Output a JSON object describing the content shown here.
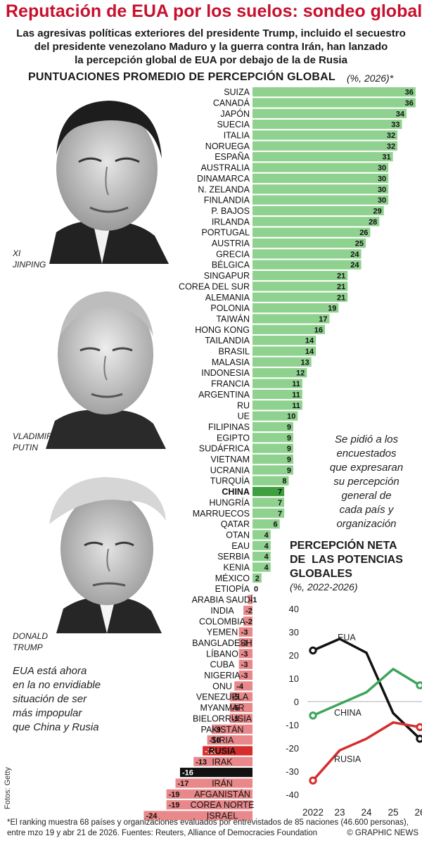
{
  "headline": "Reputación de EUA por los suelos: sondeo global",
  "deck": [
    "Las agresivas políticas exteriores del presidente Trump, incluido el secuestro",
    "del presidente venezolano Maduro y la guerra contra Irán, han lanzado",
    "la percepción global de EUA por debajo de la de Rusia"
  ],
  "chart_title": "PUNTUACIONES PROMEDIO DE PERCEPCIÓN GLOBAL",
  "chart_unit": "(%, 2026)*",
  "captions": {
    "xi": [
      "XI",
      "JINPING"
    ],
    "putin": [
      "VLADIMIR",
      "PUTIN"
    ],
    "trump": [
      "DONALD",
      "TRUMP"
    ]
  },
  "note_right": [
    "Se pidió a los",
    "encuestados",
    "que expresaran",
    "su percepción",
    "general de",
    "cada país y",
    "organización"
  ],
  "note_left": [
    "EUA está ahora",
    "en la no envidiable",
    "situación de ser",
    "más impopular",
    "que China y Rusia"
  ],
  "colors": {
    "positive": "#8fd18e",
    "china_highlight": "#3f9f3f",
    "negative": "#e8888a",
    "russia_highlight": "#d62d2d",
    "usa_highlight": "#111111",
    "headline": "#c8102e"
  },
  "chart_data": [
    {
      "type": "bar",
      "title": "PUNTUACIONES PROMEDIO DE PERCEPCIÓN GLOBAL",
      "unit": "(%, 2026)*",
      "categories": [
        "SUIZA",
        "CANADÁ",
        "JAPÓN",
        "SUECIA",
        "ITALIA",
        "NORUEGA",
        "ESPAÑA",
        "AUSTRALIA",
        "DINAMARCA",
        "N. ZELANDA",
        "FINLANDIA",
        "P. BAJOS",
        "IRLANDA",
        "PORTUGAL",
        "AUSTRIA",
        "GRECIA",
        "BÉLGICA",
        "SINGAPUR",
        "COREA DEL SUR",
        "ALEMANIA",
        "POLONIA",
        "TAIWÁN",
        "HONG KONG",
        "TAILANDIA",
        "BRASIL",
        "MALASIA",
        "INDONESIA",
        "FRANCIA",
        "ARGENTINA",
        "RU",
        "UE",
        "FILIPINAS",
        "EGIPTO",
        "SUDÁFRICA",
        "VIETNAM",
        "UCRANIA",
        "TURQUÍA",
        "CHINA",
        "HUNGRÍA",
        "MARRUECOS",
        "QATAR",
        "OTAN",
        "EAU",
        "SERBIA",
        "KENIA",
        "MÉXICO",
        "ETIOPÍA",
        "ARABIA SAUDÍ",
        "INDIA",
        "COLOMBIA",
        "YEMEN",
        "BANGLADESH",
        "LÍBANO",
        "CUBA",
        "NIGERIA",
        "ONU",
        "VENEZUELA",
        "MYANMAR",
        "BIELORRUSIA",
        "PAKISTÁN",
        "SIRIA",
        "RUSIA",
        "IRAK",
        "EUA",
        "IRÁN",
        "AFGANISTÁN",
        "COREA NORTE",
        "ISRAEL"
      ],
      "values": [
        36,
        36,
        34,
        33,
        32,
        32,
        31,
        30,
        30,
        30,
        30,
        29,
        28,
        26,
        25,
        24,
        24,
        21,
        21,
        21,
        19,
        17,
        16,
        14,
        14,
        13,
        12,
        11,
        11,
        11,
        10,
        9,
        9,
        9,
        9,
        9,
        8,
        7,
        7,
        7,
        6,
        4,
        4,
        4,
        4,
        2,
        0,
        -1,
        -2,
        -2,
        -3,
        -3,
        -3,
        -3,
        -3,
        -4,
        -5,
        -5,
        -5,
        -9,
        -10,
        -11,
        -13,
        -16,
        -17,
        -19,
        -19,
        -24
      ],
      "highlighted": [
        "CHINA",
        "RUSIA",
        "EUA"
      ]
    },
    {
      "type": "line",
      "title": "PERCEPCIÓN NETA DE LAS POTENCIAS GLOBALES",
      "unit": "(%, 2022-2026)",
      "x": [
        2022,
        2023,
        2024,
        2025,
        2026
      ],
      "xtick_labels": [
        "2022",
        "23",
        "24",
        "25",
        "26"
      ],
      "ylim": [
        -40,
        40
      ],
      "yticks": [
        40,
        30,
        20,
        10,
        0,
        -10,
        -20,
        -30,
        -40
      ],
      "grid": false,
      "series": [
        {
          "name": "EUA",
          "color": "#111111",
          "values": [
            22,
            27,
            21,
            -5,
            -16
          ]
        },
        {
          "name": "CHINA",
          "color": "#3da45a",
          "values": [
            -6,
            -1,
            4,
            14,
            7
          ]
        },
        {
          "name": "RUSIA",
          "color": "#d62d2d",
          "values": [
            -34,
            -21,
            -16,
            -9,
            -11
          ]
        }
      ]
    }
  ],
  "footer": {
    "line1": "*El ranking muestra  68 países y organizaciones evaluados por entrevistados de 85 naciones (46.600 personas),",
    "line2": "entre mzo 19 y abr 21 de 2026.  Fuentes: Reuters, Alliance of Democracies Foundation",
    "brand": "© GRAPHIC NEWS"
  },
  "photo_credit": "Fotos: Getty"
}
